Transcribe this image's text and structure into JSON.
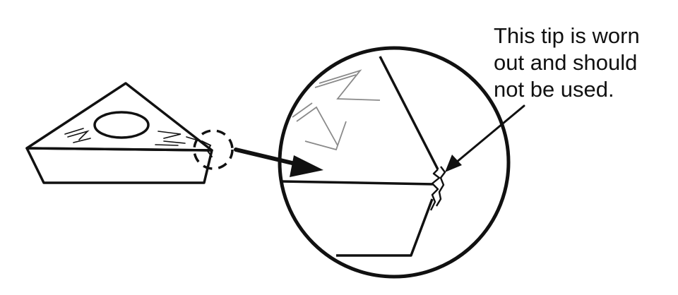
{
  "callout": {
    "lines": [
      "This tip is worn",
      "out and should",
      "not be used."
    ]
  },
  "colors": {
    "ink": "#111111",
    "chipbreaker_gray": "#8a8a8a",
    "background": "#ffffff"
  },
  "icons": {
    "pointer": "arrow-right-icon",
    "leader": "leader-arrow-icon"
  }
}
